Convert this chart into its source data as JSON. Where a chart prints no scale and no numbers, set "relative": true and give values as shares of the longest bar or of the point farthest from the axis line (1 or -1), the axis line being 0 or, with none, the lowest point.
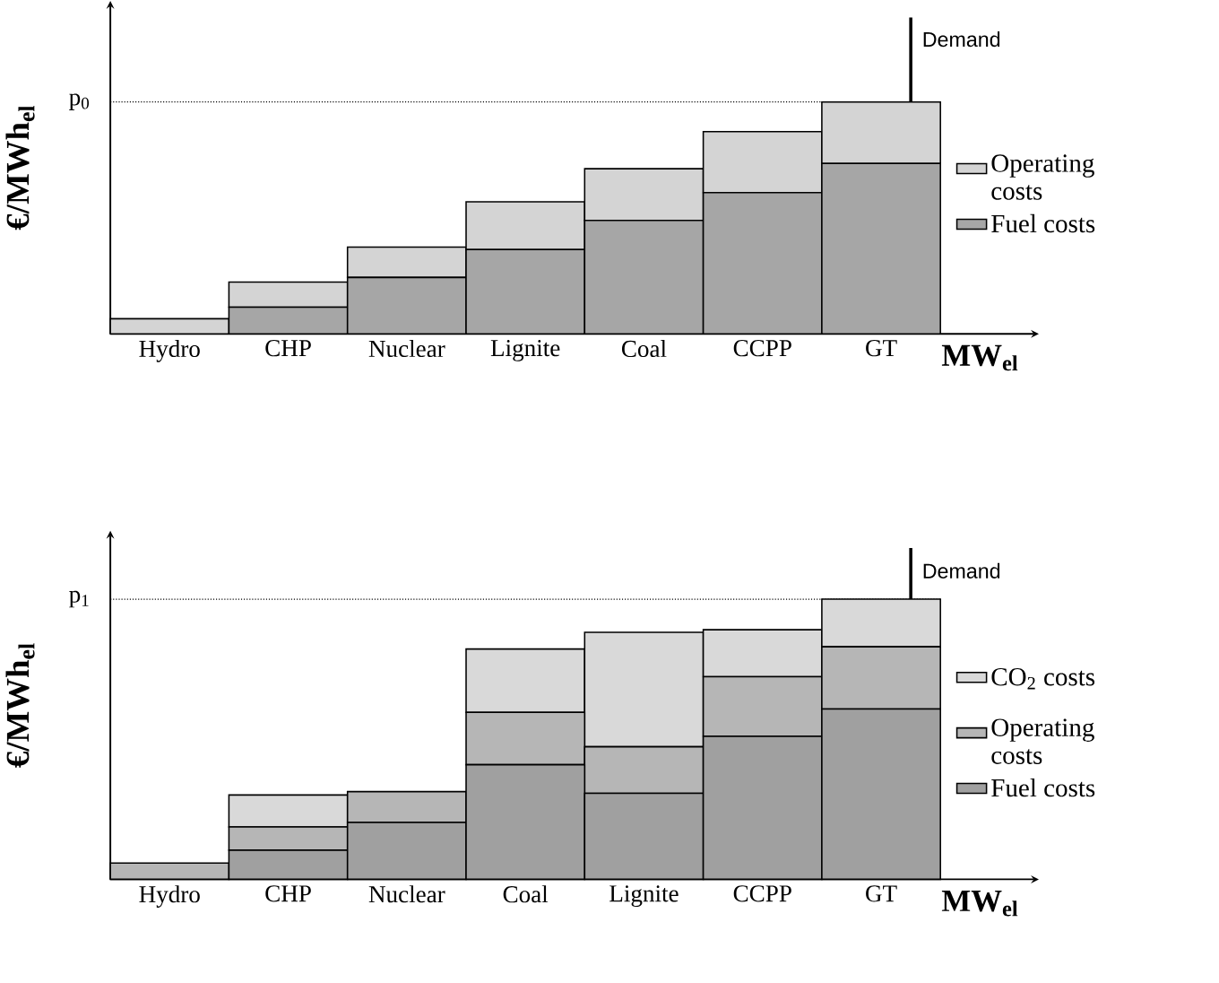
{
  "chart_data": [
    {
      "type": "bar",
      "stacked": true,
      "relative": true,
      "ylabel": "€/MWh$_{el}$",
      "xlabel": "MW$_{el}$",
      "legend": "right",
      "categories": [
        "Hydro",
        "CHP",
        "Nuclear",
        "Lignite",
        "Coal",
        "CCPP",
        "GT"
      ],
      "series": [
        {
          "name": "Fuel costs",
          "color": "#a6a6a6",
          "values": [
            0,
            0.115,
            0.243,
            0.363,
            0.489,
            0.609,
            0.735
          ]
        },
        {
          "name": "Operating costs",
          "color": "#d4d4d4",
          "values": [
            0.065,
            0.108,
            0.131,
            0.206,
            0.223,
            0.263,
            0.265
          ]
        }
      ],
      "ref_lines": [
        {
          "axis": "y",
          "value": 1.0,
          "label": "p$_{0}$",
          "line_style": "dotted"
        },
        {
          "axis": "x",
          "value": "GT",
          "label": "Demand",
          "line_style": "solid"
        }
      ]
    },
    {
      "type": "bar",
      "stacked": true,
      "relative": true,
      "ylabel": "€/MWh$_{el}$",
      "xlabel": "MW$_{el}$",
      "legend": "right",
      "categories": [
        "Hydro",
        "CHP",
        "Nuclear",
        "Coal",
        "Lignite",
        "CCPP",
        "GT"
      ],
      "series": [
        {
          "name": "Fuel costs",
          "color": "#a0a0a0",
          "values": [
            0,
            0.104,
            0.203,
            0.409,
            0.307,
            0.51,
            0.608
          ]
        },
        {
          "name": "Operating costs",
          "color": "#b6b6b6",
          "values": [
            0.058,
            0.083,
            0.11,
            0.187,
            0.166,
            0.213,
            0.222
          ]
        },
        {
          "name": "CO$_{2}$ costs",
          "color": "#d9d9d9",
          "values": [
            0,
            0.114,
            0,
            0.226,
            0.409,
            0.168,
            0.17
          ]
        }
      ],
      "ref_lines": [
        {
          "axis": "y",
          "value": 1.0,
          "label": "p$_{1}$",
          "line_style": "dotted"
        },
        {
          "axis": "x",
          "value": "GT",
          "label": "Demand",
          "line_style": "solid"
        }
      ]
    }
  ]
}
